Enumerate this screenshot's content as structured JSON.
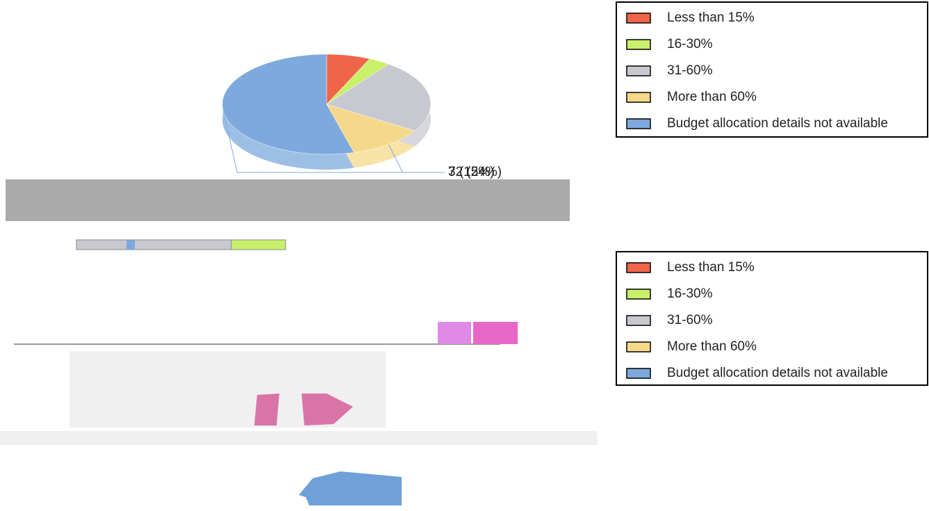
{
  "chart_data": {
    "type": "pie",
    "categories": [
      "Less than 15%",
      "16-30%",
      "31-60%",
      "More than 60%",
      "Budget allocation details not available"
    ],
    "values": [
      4,
      2,
      14,
      7,
      32
    ],
    "value_labels": [
      null,
      null,
      null,
      "7 (12%)",
      "32 (54%)"
    ],
    "colors": [
      "#f0644a",
      "#c9f06a",
      "#c8c8d0",
      "#f5d98a",
      "#7ea9dc"
    ],
    "legend": "top-right"
  },
  "map_legend": {
    "items": [
      "Less than 15%",
      "16-30%",
      "31-60%",
      "More than 60%",
      "Budget allocation details not available"
    ],
    "colors": [
      "#f0644a",
      "#c9f06a",
      "#c8c8d0",
      "#f5d98a",
      "#7ea9dc"
    ]
  }
}
